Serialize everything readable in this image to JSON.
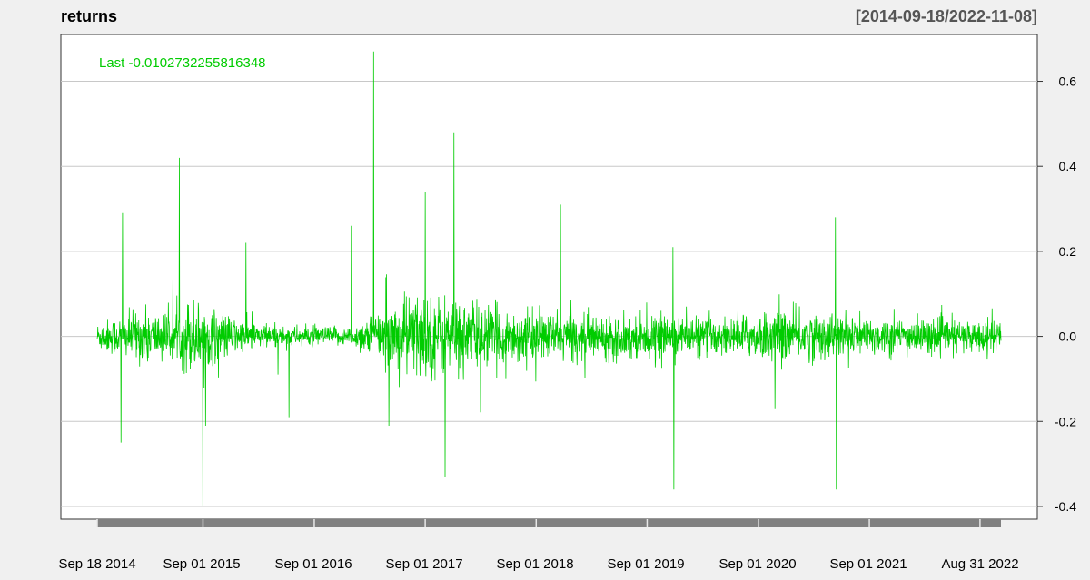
{
  "chart_data": {
    "type": "line",
    "title": "returns",
    "date_range_label": "[2014-09-18/2022-11-08]",
    "last_label": "Last -0.0102732255816348",
    "series": [
      {
        "color": "#00cc00",
        "x_start": "2014-09-18",
        "x_end": "2022-11-08",
        "notable_points": [
          {
            "x": "2014-12-10",
            "y": 0.29
          },
          {
            "x": "2014-12-05",
            "y": -0.25
          },
          {
            "x": "2015-06-15",
            "y": 0.42
          },
          {
            "x": "2015-09-01",
            "y": -0.4
          },
          {
            "x": "2015-09-10",
            "y": -0.21
          },
          {
            "x": "2016-01-20",
            "y": 0.22
          },
          {
            "x": "2016-06-10",
            "y": -0.19
          },
          {
            "x": "2017-01-01",
            "y": 0.26
          },
          {
            "x": "2017-03-15",
            "y": 0.67
          },
          {
            "x": "2017-05-05",
            "y": -0.21
          },
          {
            "x": "2017-09-01",
            "y": 0.34
          },
          {
            "x": "2017-11-05",
            "y": -0.33
          },
          {
            "x": "2017-12-05",
            "y": 0.48
          },
          {
            "x": "2018-11-20",
            "y": 0.31
          },
          {
            "x": "2019-11-25",
            "y": 0.21
          },
          {
            "x": "2019-11-28",
            "y": -0.36
          },
          {
            "x": "2021-05-12",
            "y": 0.28
          },
          {
            "x": "2021-05-15",
            "y": -0.36
          },
          {
            "x": "2022-11-08",
            "y": -0.0102732255816348
          }
        ]
      }
    ],
    "ylim": [
      -0.43,
      0.71
    ],
    "y_ticks": [
      "0.6",
      "0.4",
      "0.2",
      "0.0",
      "-0.2",
      "-0.4"
    ],
    "x_ticks": [
      "Sep 18 2014",
      "Sep 01 2015",
      "Sep 01 2016",
      "Sep 01 2017",
      "Sep 01 2018",
      "Sep 01 2019",
      "Sep 01 2020",
      "Sep 01 2021",
      "Aug 31 2022"
    ],
    "grid": true
  }
}
